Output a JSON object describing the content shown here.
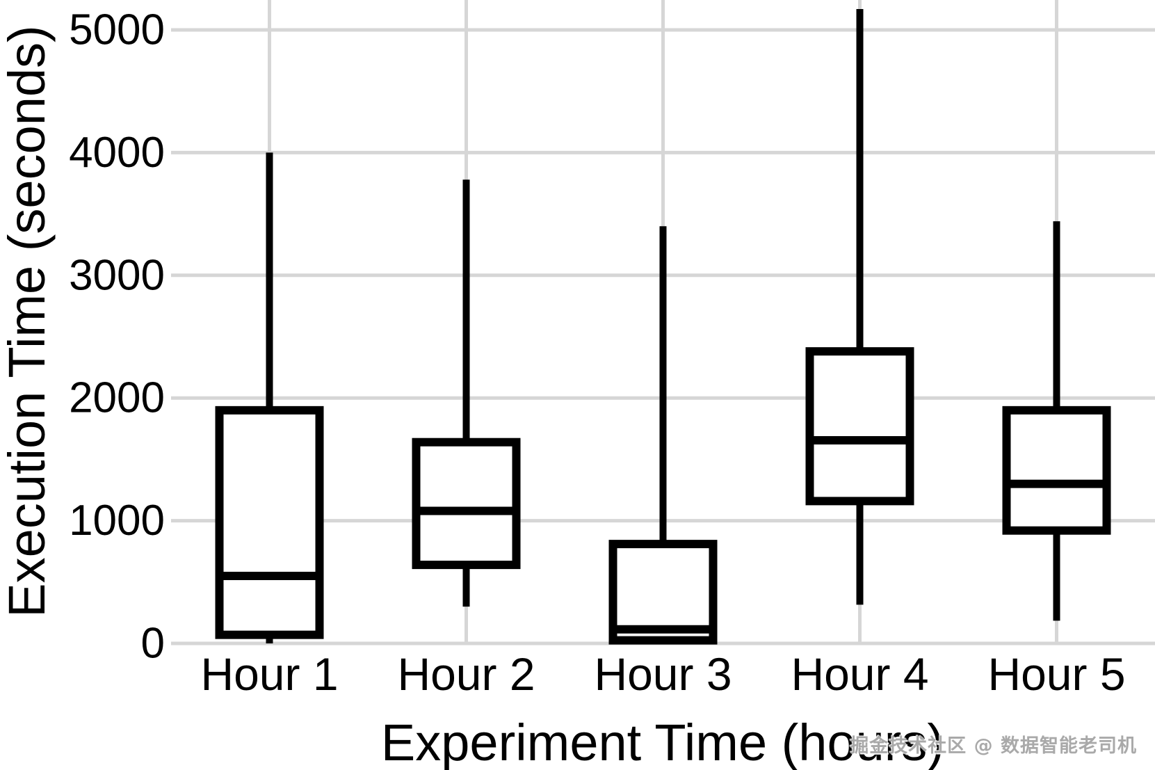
{
  "chart_data": {
    "type": "boxplot",
    "title": "",
    "xlabel": "Experiment Time (hours)",
    "ylabel": "Execution Time (seconds)",
    "categories": [
      "Hour 1",
      "Hour 2",
      "Hour 3",
      "Hour 4",
      "Hour 5"
    ],
    "yticks": [
      0,
      1000,
      2000,
      3000,
      4000,
      5000
    ],
    "ylim": [
      0,
      5240
    ],
    "grid": true,
    "legend": "none",
    "boxes": [
      {
        "category": "Hour 1",
        "whisker_low": 0,
        "q1": 70,
        "median": 550,
        "q3": 1900,
        "whisker_high": 4000
      },
      {
        "category": "Hour 2",
        "whisker_low": 300,
        "q1": 640,
        "median": 1080,
        "q3": 1640,
        "whisker_high": 3780
      },
      {
        "category": "Hour 3",
        "whisker_low": 5,
        "q1": 25,
        "median": 115,
        "q3": 810,
        "whisker_high": 3400
      },
      {
        "category": "Hour 4",
        "whisker_low": 315,
        "q1": 1160,
        "median": 1655,
        "q3": 2380,
        "whisker_high": 5170
      },
      {
        "category": "Hour 5",
        "whisker_low": 185,
        "q1": 920,
        "median": 1300,
        "q3": 1900,
        "whisker_high": 3440
      }
    ],
    "style": {
      "box_fill": "#ffffff",
      "box_stroke": "#000000",
      "grid_color": "#d6d6d6",
      "text_color": "#000000",
      "background": "#ffffff"
    }
  },
  "watermark": {
    "text": "掘金技术社区 @ 数据智能老司机"
  }
}
